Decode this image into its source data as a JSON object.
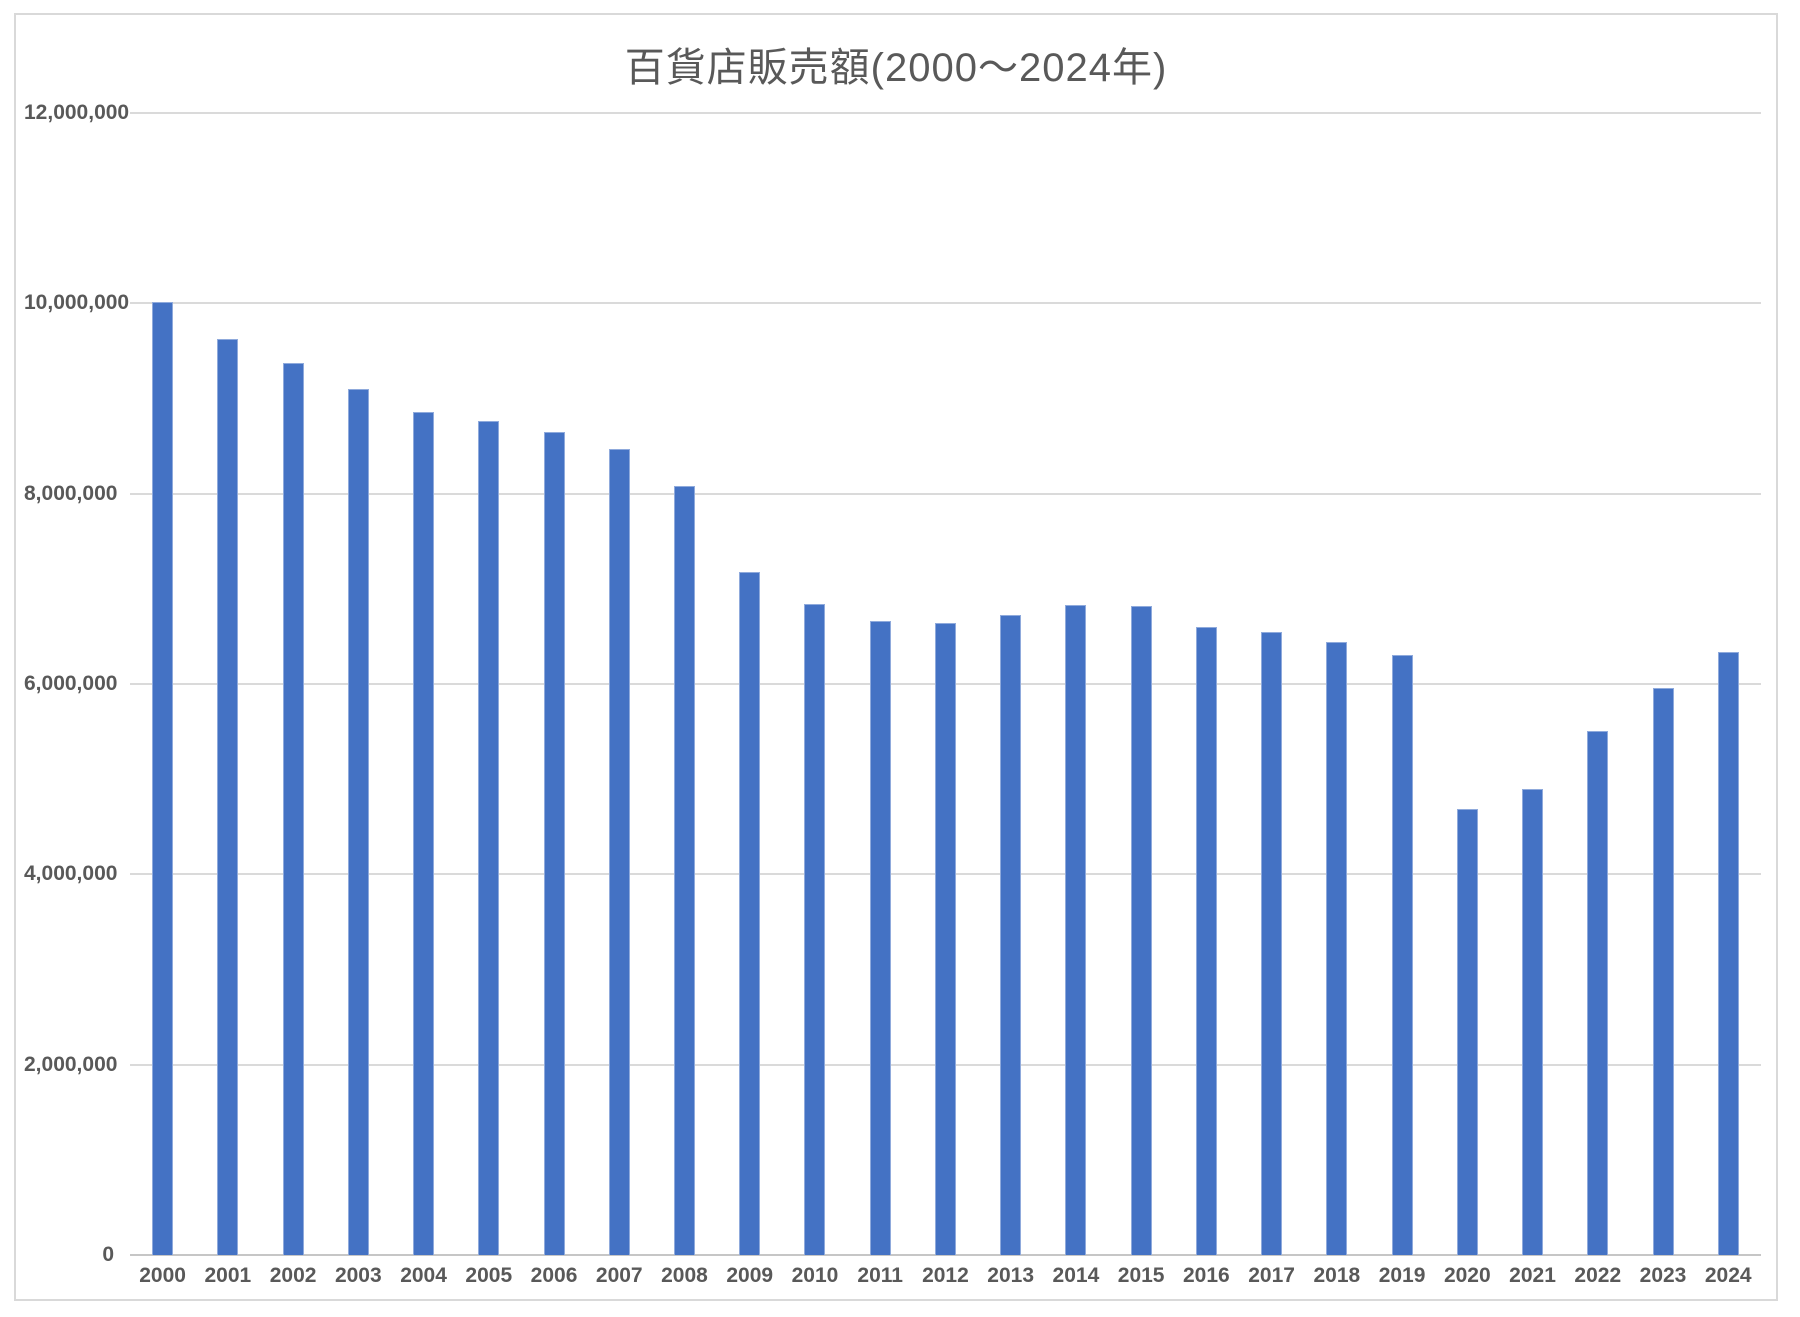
{
  "chart": {
    "colors": {
      "bar_fill": "#4472c4",
      "bar_edge": "#8faadc",
      "gridline_color": "#dadada",
      "axis_line_color": "#c6c6c6",
      "frame_border_color": "#d9d9d9",
      "title_color": "#595959",
      "tick_color": "#595959",
      "page_bg": "#ffffff"
    }
  },
  "chart_data": {
    "type": "bar",
    "title": "百貨店販売額(2000〜2024年)",
    "xlabel": "",
    "ylabel": "",
    "categories": [
      "2000",
      "2001",
      "2002",
      "2003",
      "2004",
      "2005",
      "2006",
      "2007",
      "2008",
      "2009",
      "2010",
      "2011",
      "2012",
      "2013",
      "2014",
      "2015",
      "2016",
      "2017",
      "2018",
      "2019",
      "2020",
      "2021",
      "2022",
      "2023",
      "2024"
    ],
    "values": [
      10010000,
      9630000,
      9370000,
      9100000,
      8860000,
      8760000,
      8650000,
      8470000,
      8080000,
      7180000,
      6840000,
      6660000,
      6640000,
      6720000,
      6830000,
      6820000,
      6600000,
      6550000,
      6440000,
      6300000,
      4690000,
      4900000,
      5510000,
      5960000,
      6340000
    ],
    "ylim": [
      0,
      12000000
    ],
    "ytick_interval": 2000000,
    "yticks": [
      0,
      2000000,
      4000000,
      6000000,
      8000000,
      10000000,
      12000000
    ],
    "ytick_labels": [
      "0",
      "2,000,000",
      "4,000,000",
      "6,000,000",
      "8,000,000",
      "10,000,000",
      "12,000,000"
    ],
    "grid": "horizontal",
    "legend": false
  }
}
